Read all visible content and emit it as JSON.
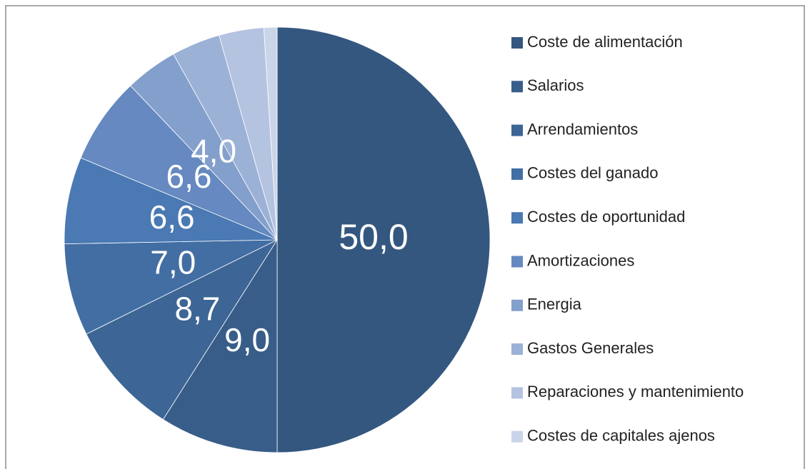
{
  "chart_data": {
    "type": "pie",
    "categories": [
      "Coste de alimentación",
      "Salarios",
      "Arrendamientos",
      "Costes del ganado",
      "Costes de oportunidad",
      "Amortizaciones",
      "Energia",
      "Gastos Generales",
      "Reparaciones y mantenimiento",
      "Costes de capitales ajenos"
    ],
    "values": [
      50.0,
      9.0,
      8.7,
      7.0,
      6.6,
      6.6,
      4.0,
      3.7,
      3.4,
      1.0
    ],
    "value_labels": [
      "50,0",
      "9,0",
      "8,7",
      "7,0",
      "6,6",
      "6,6",
      "4,0",
      null,
      null,
      null
    ],
    "colors": [
      "#34577f",
      "#385d89",
      "#3d6595",
      "#426ea3",
      "#4a79b3",
      "#6589c0",
      "#839fcc",
      "#9cb1d6",
      "#b4c3e0",
      "#cbd5e9"
    ],
    "legend": "right"
  }
}
